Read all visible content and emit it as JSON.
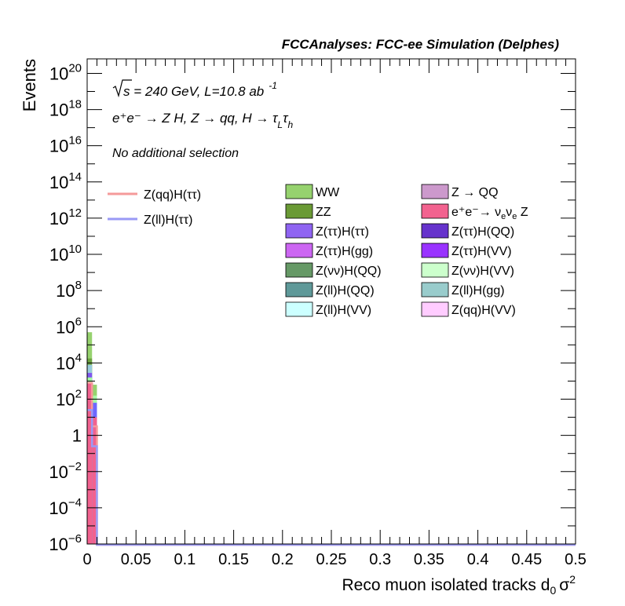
{
  "chart_data": {
    "type": "bar",
    "stacked": true,
    "title": "FCCAnalyses: FCC-ee Simulation (Delphes)",
    "xlabel": "Reco muon isolated tracks d",
    "xlabel_sub": "0",
    "xlabel_tail": "σ",
    "xlabel_sup": "2",
    "ylabel": "Events",
    "xlim": [
      0,
      0.5
    ],
    "ylim_log10": [
      -6,
      20.8
    ],
    "log_y": true,
    "grid": false,
    "x_ticks": [
      "0",
      "0.05",
      "0.1",
      "0.15",
      "0.2",
      "0.25",
      "0.3",
      "0.35",
      "0.4",
      "0.45",
      "0.5"
    ],
    "x_tick_values": [
      0,
      0.05,
      0.1,
      0.15,
      0.2,
      0.25,
      0.3,
      0.35,
      0.4,
      0.45,
      0.5
    ],
    "y_ticks": [
      {
        "exp": -6,
        "base": "10",
        "sup": "−6"
      },
      {
        "exp": -4,
        "base": "10",
        "sup": "−4"
      },
      {
        "exp": -2,
        "base": "10",
        "sup": "−2"
      },
      {
        "exp": 0,
        "base": "1",
        "sup": ""
      },
      {
        "exp": 2,
        "base": "10",
        "sup": "2"
      },
      {
        "exp": 4,
        "base": "10",
        "sup": "4"
      },
      {
        "exp": 6,
        "base": "10",
        "sup": "6"
      },
      {
        "exp": 8,
        "base": "10",
        "sup": "8"
      },
      {
        "exp": 10,
        "base": "10",
        "sup": "10"
      },
      {
        "exp": 12,
        "base": "10",
        "sup": "12"
      },
      {
        "exp": 14,
        "base": "10",
        "sup": "14"
      },
      {
        "exp": 16,
        "base": "10",
        "sup": "16"
      },
      {
        "exp": 18,
        "base": "10",
        "sup": "18"
      },
      {
        "exp": 20,
        "base": "10",
        "sup": "20"
      }
    ],
    "annotations": {
      "energy_line": {
        "sqrt": "s",
        "rest": " = 240 GeV, L=10.8 ab",
        "sup": "-1"
      },
      "process_line": "e⁺e⁻ → Z H, Z → qq, H → τ",
      "process_sub1": "L",
      "process_tau2": "τ",
      "process_sub2": "h",
      "selection": "No additional selection"
    },
    "stack_bins": [
      {
        "x0": 0.0,
        "x1": 0.005,
        "layers": [
          {
            "color": "#f2628f",
            "log10": 2.9
          },
          {
            "color": "#a5ffa5",
            "log10": 3.2
          },
          {
            "color": "#7f57f0",
            "log10": 3.45
          },
          {
            "color": "#99ccdc",
            "log10": 3.9
          },
          {
            "color": "#6da341",
            "log10": 4.25
          },
          {
            "color": "#96d26e",
            "log10": 5.7
          }
        ]
      },
      {
        "x0": 0.005,
        "x1": 0.01,
        "layers": [
          {
            "color": "#f2628f",
            "log10": 1.0
          },
          {
            "color": "#6e67ff",
            "log10": 1.8
          },
          {
            "color": "#a5ffa5",
            "log10": 2.2
          },
          {
            "color": "#96d26e",
            "log10": 2.8
          }
        ]
      }
    ],
    "signal_lines": [
      {
        "name": "Z(qq)H(ττ)",
        "color": "#f59a9a",
        "points": [
          {
            "x0": 0.0,
            "x1": 0.005,
            "log10": 2.9
          },
          {
            "x0": 0.005,
            "x1": 0.01,
            "log10": 0.5
          },
          {
            "x0": 0.01,
            "x1": 0.5,
            "log10": -6.6
          }
        ]
      },
      {
        "name": "Z(ll)H(ττ)",
        "color": "#9a9af5",
        "points": [
          {
            "x0": 0.0,
            "x1": 0.005,
            "log10": 1.4
          },
          {
            "x0": 0.005,
            "x1": 0.01,
            "log10": -0.6
          },
          {
            "x0": 0.01,
            "x1": 0.5,
            "log10": -6.6
          }
        ]
      }
    ],
    "legend_signal": [
      {
        "name": "Z(qq)H(ττ)",
        "color": "#f59a9a"
      },
      {
        "name": "Z(ll)H(ττ)",
        "color": "#9a9af5"
      }
    ],
    "legend_backgrounds": [
      {
        "name": "WW",
        "color": "#96d26e"
      },
      {
        "name": "Z → QQ",
        "color": "#cc99cc"
      },
      {
        "name": "ZZ",
        "color": "#6a9a35"
      },
      {
        "name": "e⁺e⁻→ ν",
        "name_sub": "e",
        "name_mid": "ν",
        "name_sub2": "e",
        "name_tail": " Z",
        "color": "#f2628f"
      },
      {
        "name": "Z(ττ)H(ττ)",
        "color": "#8f64f2"
      },
      {
        "name": "Z(ττ)H(QQ)",
        "color": "#6633cc"
      },
      {
        "name": "Z(ττ)H(gg)",
        "color": "#cc66f2"
      },
      {
        "name": "Z(ττ)H(VV)",
        "color": "#9933ff"
      },
      {
        "name": "Z(νν)H(QQ)",
        "color": "#669966"
      },
      {
        "name": "Z(νν)H(VV)",
        "color": "#ccffcc"
      },
      {
        "name": "Z(ll)H(QQ)",
        "color": "#5f9999"
      },
      {
        "name": "Z(ll)H(gg)",
        "color": "#99cccc"
      },
      {
        "name": "Z(ll)H(VV)",
        "color": "#ccffff"
      },
      {
        "name": "Z(qq)H(VV)",
        "color": "#ffccff"
      }
    ]
  }
}
